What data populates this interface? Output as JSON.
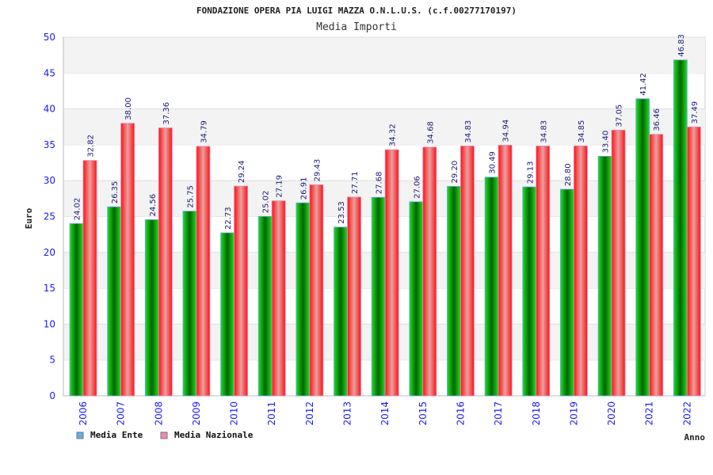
{
  "chart_data": {
    "type": "bar",
    "title": "FONDAZIONE OPERA PIA LUIGI MAZZA O.N.L.U.S. (c.f.00277170197)",
    "subtitle": "Media Importi",
    "xlabel": "Anno",
    "ylabel": "Euro",
    "ylim": [
      0,
      50
    ],
    "yticks": [
      0,
      5,
      10,
      15,
      20,
      25,
      30,
      35,
      40,
      45,
      50
    ],
    "grid": true,
    "legend_position": "bottom-left",
    "categories": [
      "2006",
      "2007",
      "2008",
      "2009",
      "2010",
      "2011",
      "2012",
      "2013",
      "2014",
      "2015",
      "2016",
      "2017",
      "2018",
      "2019",
      "2020",
      "2021",
      "2022"
    ],
    "series": [
      {
        "name": "Media Ente",
        "color": "#66aaee",
        "values": [
          24.02,
          26.35,
          24.56,
          25.75,
          22.73,
          25.02,
          26.91,
          23.53,
          27.68,
          27.06,
          29.2,
          30.49,
          29.13,
          28.8,
          33.4,
          41.42,
          46.83
        ]
      },
      {
        "name": "Media Nazionale",
        "color": "#ee88bb",
        "values": [
          32.82,
          38.0,
          37.36,
          34.79,
          29.24,
          27.19,
          29.43,
          27.71,
          34.32,
          34.68,
          34.83,
          34.94,
          34.83,
          34.85,
          37.05,
          36.46,
          37.49
        ]
      }
    ]
  }
}
